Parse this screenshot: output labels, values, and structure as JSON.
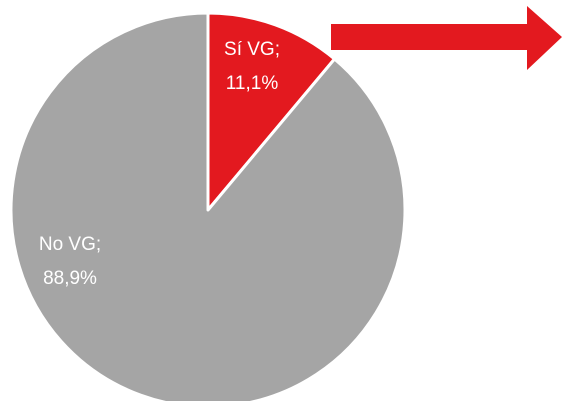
{
  "chart_data": {
    "type": "pie",
    "categories": [
      "Sí VG;",
      "No VG;"
    ],
    "values": [
      11.1,
      88.9
    ],
    "value_labels": [
      "11,1%",
      "88,9%"
    ],
    "colors": [
      "#e3191f",
      "#a5a5a5"
    ]
  }
}
